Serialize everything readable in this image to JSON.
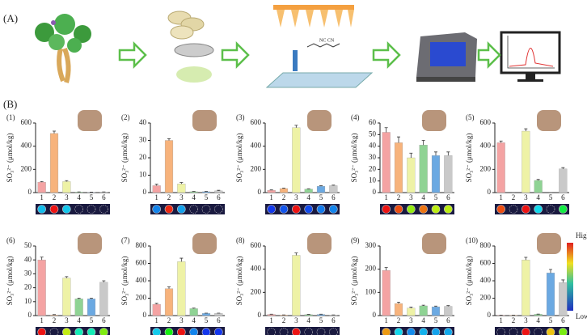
{
  "panels": {
    "a": "(A)",
    "b": "(B)"
  },
  "colorbar": {
    "high": "High",
    "low": "Low"
  },
  "chart_data": [
    {
      "type": "bar",
      "title": "(1)",
      "ylabel": "SO₃²⁻ (μmol/kg)",
      "categories": [
        "1",
        "2",
        "3",
        "4",
        "5",
        "6"
      ],
      "values": [
        90,
        510,
        95,
        5,
        3,
        5
      ],
      "errors": [
        5,
        20,
        8,
        1,
        1,
        1
      ],
      "ylim": [
        0,
        600
      ],
      "yticks": [
        0,
        200,
        400,
        600
      ],
      "colors": [
        "#f4a3a3",
        "#f7b37c",
        "#eef2a6",
        "#8fd394",
        "#6ba9e2",
        "#c9c9c9"
      ]
    },
    {
      "type": "bar",
      "title": "(2)",
      "ylabel": "SO₃²⁻ (μmol/kg)",
      "categories": [
        "1",
        "2",
        "3",
        "4",
        "5",
        "6"
      ],
      "values": [
        4,
        30,
        5,
        0.5,
        0.5,
        1
      ],
      "errors": [
        0.8,
        1,
        0.8,
        0.2,
        0.2,
        0.3
      ],
      "ylim": [
        0,
        40
      ],
      "yticks": [
        0,
        10,
        20,
        30,
        40
      ],
      "colors": [
        "#f4a3a3",
        "#f7b37c",
        "#eef2a6",
        "#8fd394",
        "#6ba9e2",
        "#c9c9c9"
      ]
    },
    {
      "type": "bar",
      "title": "(3)",
      "ylabel": "SO₃²⁻ (μmol/kg)",
      "categories": [
        "1",
        "2",
        "3",
        "4",
        "5",
        "6"
      ],
      "values": [
        20,
        35,
        560,
        30,
        55,
        60
      ],
      "errors": [
        3,
        4,
        20,
        3,
        4,
        4
      ],
      "ylim": [
        0,
        600
      ],
      "yticks": [
        0,
        200,
        400,
        600
      ],
      "colors": [
        "#f4a3a3",
        "#f7b37c",
        "#eef2a6",
        "#8fd394",
        "#6ba9e2",
        "#c9c9c9"
      ]
    },
    {
      "type": "bar",
      "title": "(4)",
      "ylabel": "SO₃²⁻ (μmol/kg)",
      "categories": [
        "1",
        "2",
        "3",
        "4",
        "5",
        "6"
      ],
      "values": [
        52,
        43,
        30,
        41,
        32,
        32
      ],
      "errors": [
        4,
        5,
        4,
        4,
        3,
        3
      ],
      "ylim": [
        0,
        60
      ],
      "yticks": [
        0,
        10,
        20,
        30,
        40,
        50,
        60
      ],
      "colors": [
        "#f4a3a3",
        "#f7b37c",
        "#eef2a6",
        "#8fd394",
        "#6ba9e2",
        "#c9c9c9"
      ]
    },
    {
      "type": "bar",
      "title": "(5)",
      "ylabel": "SO₃²⁻ (μmol/kg)",
      "categories": [
        "1",
        "2",
        "3",
        "4",
        "5",
        "6"
      ],
      "values": [
        430,
        0,
        530,
        105,
        0,
        205
      ],
      "errors": [
        15,
        0,
        20,
        8,
        0,
        10
      ],
      "ylim": [
        0,
        600
      ],
      "yticks": [
        0,
        200,
        400,
        600
      ],
      "colors": [
        "#f4a3a3",
        "#f7b37c",
        "#eef2a6",
        "#8fd394",
        "#6ba9e2",
        "#c9c9c9"
      ]
    },
    {
      "type": "bar",
      "title": "(6)",
      "ylabel": "SO₃²⁻ (μmol/kg)",
      "categories": [
        "1",
        "2",
        "3",
        "4",
        "5",
        "6"
      ],
      "values": [
        40,
        0.5,
        27,
        12,
        12,
        24
      ],
      "errors": [
        2,
        0.2,
        1,
        0.5,
        0.5,
        1
      ],
      "ylim": [
        0,
        50
      ],
      "yticks": [
        0,
        10,
        20,
        30,
        40,
        50
      ],
      "colors": [
        "#f4a3a3",
        "#f7b37c",
        "#eef2a6",
        "#8fd394",
        "#6ba9e2",
        "#c9c9c9"
      ]
    },
    {
      "type": "bar",
      "title": "(7)",
      "ylabel": "SO₃²⁻ (μmol/kg)",
      "categories": [
        "1",
        "2",
        "3",
        "4",
        "5",
        "6"
      ],
      "values": [
        130,
        310,
        620,
        80,
        25,
        25
      ],
      "errors": [
        10,
        20,
        40,
        6,
        3,
        3
      ],
      "ylim": [
        0,
        800
      ],
      "yticks": [
        0,
        200,
        400,
        600,
        800
      ],
      "colors": [
        "#f4a3a3",
        "#f7b37c",
        "#eef2a6",
        "#8fd394",
        "#6ba9e2",
        "#c9c9c9"
      ]
    },
    {
      "type": "bar",
      "title": "(8)",
      "ylabel": "SO₃²⁻ (μmol/kg)",
      "categories": [
        "1",
        "2",
        "3",
        "4",
        "5",
        "6"
      ],
      "values": [
        10,
        5,
        520,
        8,
        10,
        5
      ],
      "errors": [
        2,
        1,
        20,
        2,
        2,
        1
      ],
      "ylim": [
        0,
        600
      ],
      "yticks": [
        0,
        200,
        400,
        600
      ],
      "colors": [
        "#f4a3a3",
        "#f7b37c",
        "#eef2a6",
        "#8fd394",
        "#6ba9e2",
        "#c9c9c9"
      ]
    },
    {
      "type": "bar",
      "title": "(9)",
      "ylabel": "SO₃²⁻ (μmol/kg)",
      "categories": [
        "1",
        "2",
        "3",
        "4",
        "5",
        "6"
      ],
      "values": [
        195,
        52,
        32,
        42,
        38,
        40
      ],
      "errors": [
        12,
        6,
        4,
        3,
        3,
        3
      ],
      "ylim": [
        0,
        300
      ],
      "yticks": [
        0,
        100,
        200,
        300
      ],
      "colors": [
        "#f4a3a3",
        "#f7b37c",
        "#eef2a6",
        "#8fd394",
        "#6ba9e2",
        "#c9c9c9"
      ]
    },
    {
      "type": "bar",
      "title": "(10)",
      "ylabel": "SO₃²⁻ (μmol/kg)",
      "categories": [
        "1",
        "2",
        "3",
        "4",
        "5",
        "6"
      ],
      "values": [
        5,
        5,
        640,
        15,
        490,
        380
      ],
      "errors": [
        1,
        1,
        30,
        2,
        40,
        30
      ],
      "ylim": [
        0,
        800
      ],
      "yticks": [
        0,
        200,
        400,
        600,
        800
      ],
      "colors": [
        "#f4a3a3",
        "#f7b37c",
        "#eef2a6",
        "#8fd394",
        "#6ba9e2",
        "#c9c9c9"
      ]
    }
  ]
}
